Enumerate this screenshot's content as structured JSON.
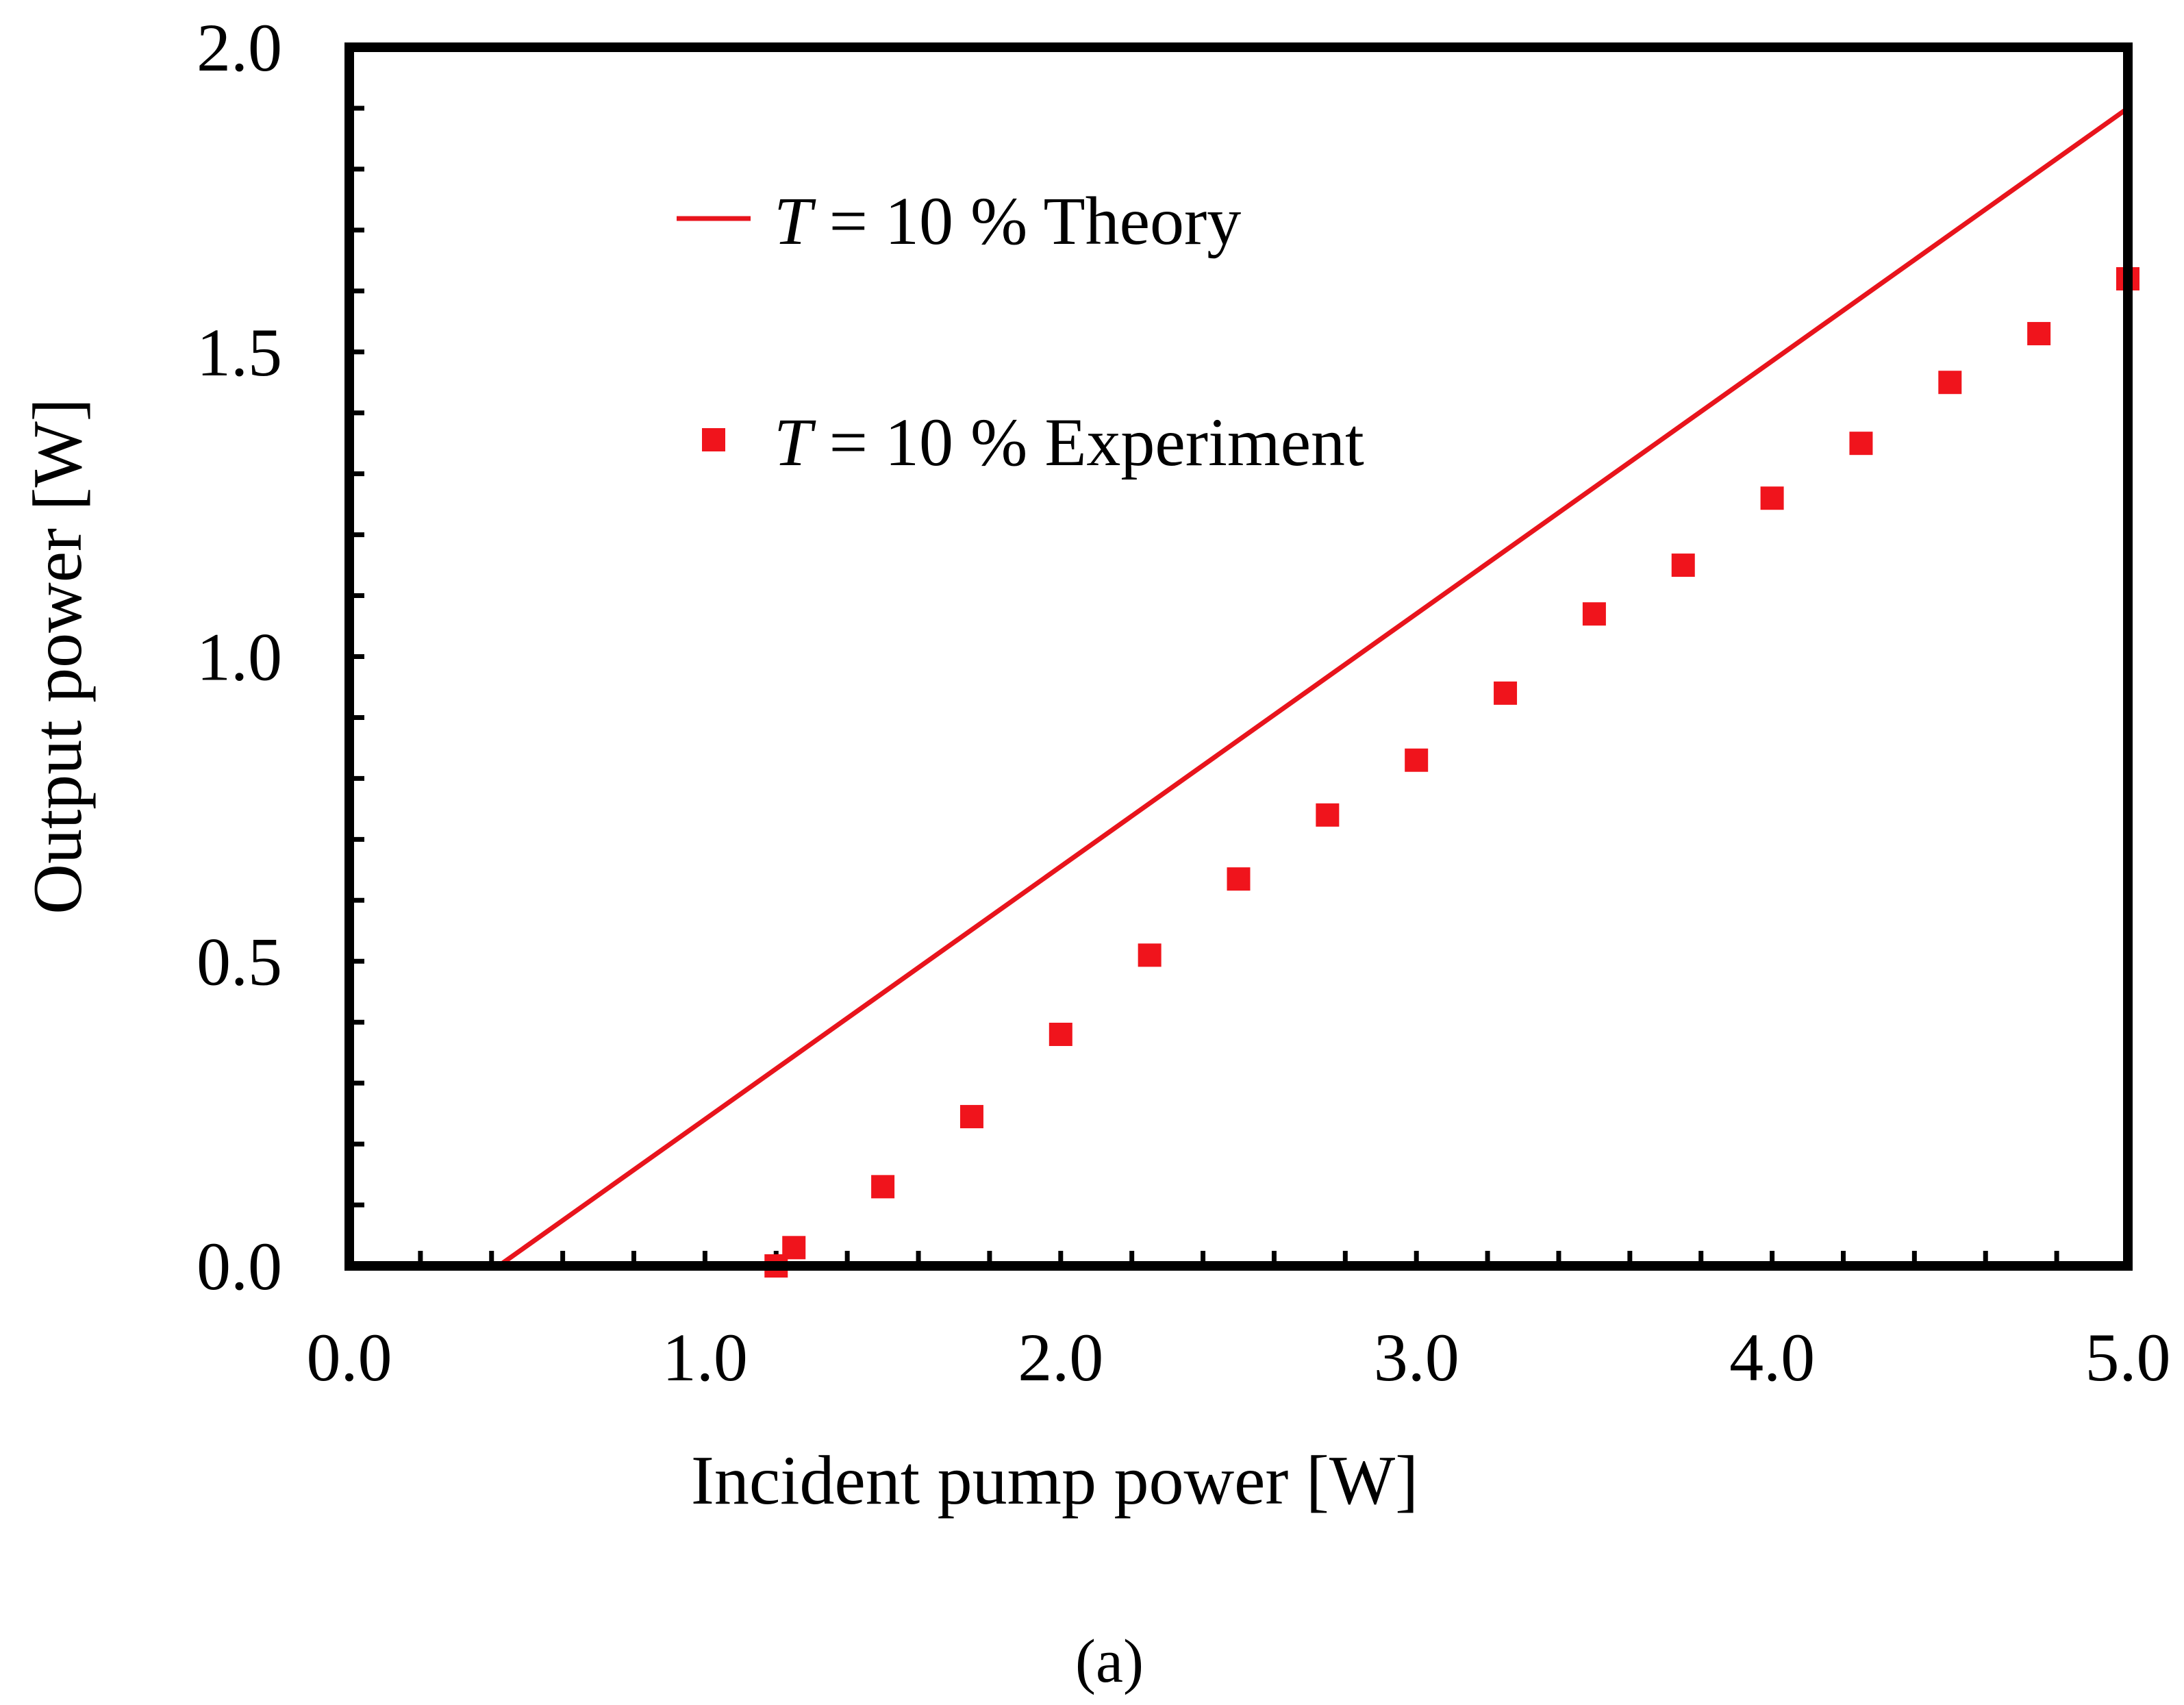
{
  "chart_data": {
    "type": "line",
    "title": "",
    "xlabel": "Incident pump power [W]",
    "ylabel": "Output power [W]",
    "xlim": [
      0.0,
      5.0
    ],
    "ylim": [
      0.0,
      2.0
    ],
    "xticks": [
      "0.0",
      "1.0",
      "2.0",
      "3.0",
      "4.0",
      "5.0"
    ],
    "yticks": [
      "0.0",
      "0.5",
      "1.0",
      "1.5",
      "2.0"
    ],
    "grid": false,
    "legend_position": "top-left",
    "series": [
      {
        "name": "Theory",
        "label_var": "T",
        "label_rest": " = 10 % Theory",
        "kind": "line",
        "color": "#e8141c",
        "x": [
          0.42,
          5.0
        ],
        "y": [
          0.0,
          1.9
        ]
      },
      {
        "name": "Experiment",
        "label_var": "T",
        "label_rest": " = 10 % Experiment",
        "kind": "scatter",
        "marker": "square",
        "color": "#f0141c",
        "x": [
          1.2,
          1.25,
          1.5,
          1.75,
          2.0,
          2.25,
          2.5,
          2.75,
          3.0,
          3.25,
          3.5,
          3.75,
          4.0,
          4.25,
          4.5,
          4.75,
          5.0
        ],
        "y": [
          0.0,
          0.03,
          0.13,
          0.245,
          0.38,
          0.51,
          0.635,
          0.74,
          0.83,
          0.94,
          1.07,
          1.15,
          1.26,
          1.35,
          1.45,
          1.53,
          1.62
        ]
      }
    ]
  },
  "caption": "(a)"
}
